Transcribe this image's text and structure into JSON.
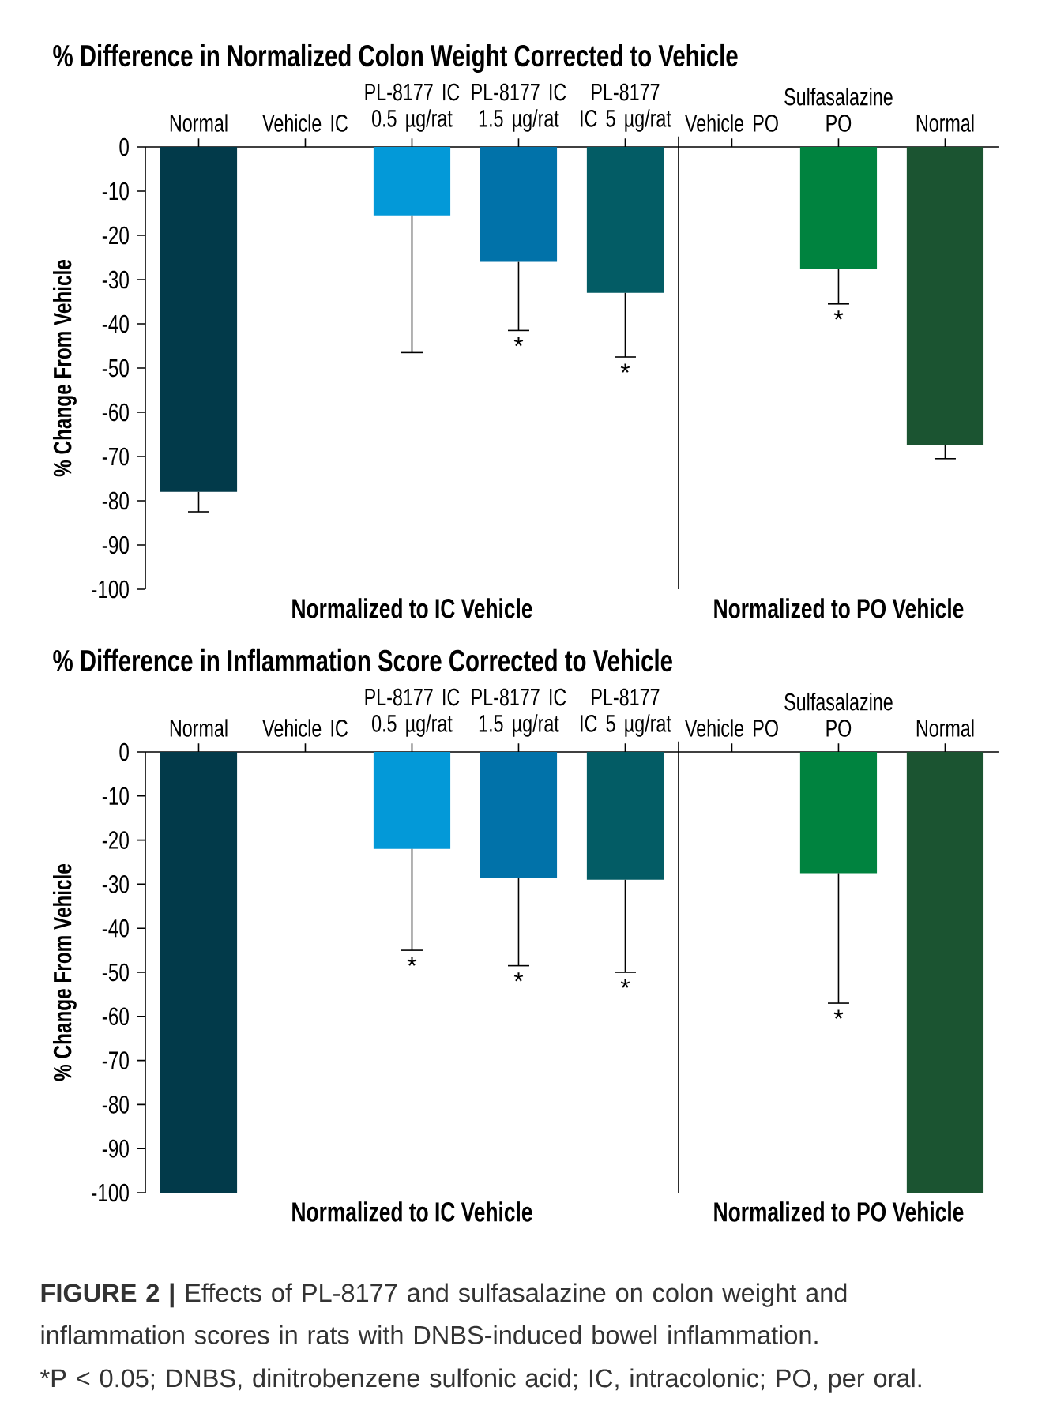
{
  "chart_data": [
    {
      "type": "bar",
      "title": "% Difference in Normalized Colon Weight Corrected to Vehicle",
      "ylabel": "% Change From Vehicle",
      "categories": [
        "Normal",
        "Vehicle IC",
        "PL-8177 IC 0.5 µg/rat",
        "PL-8177 IC 1.5 µg/rat",
        "PL-8177 IC 5 µg/rat",
        "Vehicle PO",
        "Sulfasalazine PO",
        "Normal"
      ],
      "values": [
        -78,
        0,
        -15.5,
        -26,
        -33,
        0,
        -27.5,
        -67.5
      ],
      "colors": [
        "#023a4a",
        "#023a4a",
        "#0399d8",
        "#0172a9",
        "#035c65",
        "#00833f",
        "#00833f",
        "#1b5431"
      ],
      "errors": [
        [
          -82.5,
          -78
        ],
        null,
        [
          -46.5,
          -15.5
        ],
        [
          -41.5,
          -26
        ],
        [
          -47.5,
          -33
        ],
        null,
        [
          -35.5,
          -27.5
        ],
        [
          -70.5,
          -67.5
        ]
      ],
      "ylim": [
        -100,
        0
      ],
      "yticks": [
        0,
        -10,
        -20,
        -30,
        -40,
        -50,
        -60,
        -70,
        -80,
        -90,
        -100
      ],
      "annotations": [
        "Normalized to IC Vehicle",
        "Normalized to PO Vehicle",
        {
          "text": "*",
          "x": "PL-8177 IC 1.5 µg/rat",
          "y": -41.5
        },
        {
          "text": "*",
          "x": "PL-8177 IC 5 µg/rat",
          "y": -47.5
        },
        {
          "text": "*",
          "x": "Sulfasalazine PO",
          "y": -35.5
        }
      ]
    },
    {
      "type": "bar",
      "title": "% Difference in Inflammation Score Corrected to Vehicle",
      "ylabel": "% Change From Vehicle",
      "categories": [
        "Normal",
        "Vehicle IC",
        "PL-8177 IC 0.5 µg/rat",
        "PL-8177 IC 1.5 µg/rat",
        "PL-8177 IC 5 µg/rat",
        "Vehicle PO",
        "Sulfasalazine PO",
        "Normal"
      ],
      "values": [
        -100,
        0,
        -22,
        -28.5,
        -29,
        0,
        -27.5,
        -100
      ],
      "colors": [
        "#023a4a",
        "#023a4a",
        "#0399d8",
        "#0172a9",
        "#035c65",
        "#00833f",
        "#00833f",
        "#1b5431"
      ],
      "errors": [
        null,
        null,
        [
          -45,
          -22
        ],
        [
          -48.5,
          -28.5
        ],
        [
          -50,
          -29
        ],
        null,
        [
          -57,
          -27.5
        ],
        null
      ],
      "ylim": [
        -100,
        0
      ],
      "yticks": [
        0,
        -10,
        -20,
        -30,
        -40,
        -50,
        -60,
        -70,
        -80,
        -90,
        -100
      ],
      "annotations": [
        "Normalized to IC Vehicle",
        "Normalized to PO Vehicle",
        {
          "text": "*",
          "x": "PL-8177 IC 0.5 µg/rat",
          "y": -45
        },
        {
          "text": "*",
          "x": "PL-8177 IC 1.5 µg/rat",
          "y": -48.5
        },
        {
          "text": "*",
          "x": "PL-8177 IC 5 µg/rat",
          "y": -50
        },
        {
          "text": "*",
          "x": "Sulfasalazine PO",
          "y": -57
        },
        "**FIGURE 2 |** Effects of PL-8177 and sulfasalazine on colon weight and inflammation scores in rats with DNBS-induced bowel inflammation.",
        "*P < 0.05; DNBS, dinitrobenzene sulfonic acid; IC, intracolonic; PO, per oral."
      ]
    }
  ]
}
